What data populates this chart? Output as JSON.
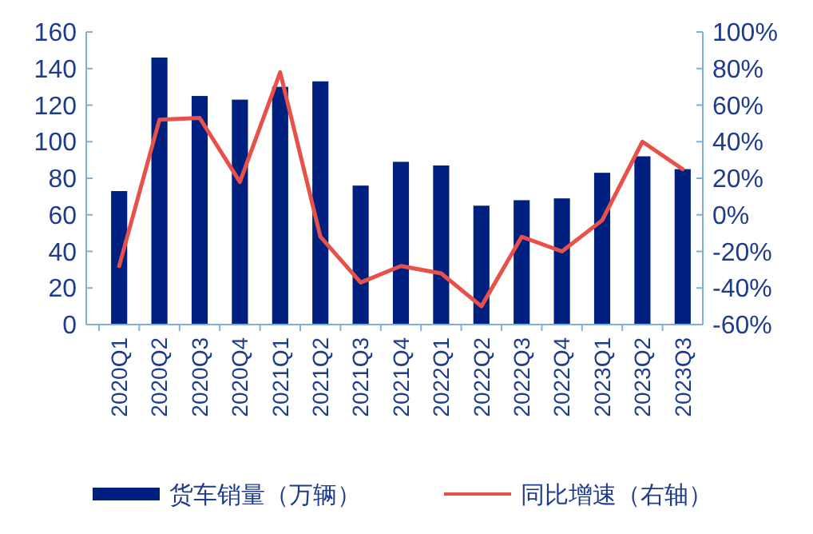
{
  "chart_data": {
    "type": "bar",
    "categories": [
      "2020Q1",
      "2020Q2",
      "2020Q3",
      "2020Q4",
      "2021Q1",
      "2021Q2",
      "2021Q3",
      "2021Q4",
      "2022Q1",
      "2022Q2",
      "2022Q3",
      "2022Q4",
      "2023Q1",
      "2023Q2",
      "2023Q3"
    ],
    "series": [
      {
        "name": "货车销量（万辆）",
        "color": "#002080",
        "values": [
          73,
          146,
          125,
          123,
          130,
          133,
          76,
          89,
          87,
          65,
          68,
          69,
          83,
          92,
          85
        ]
      },
      {
        "name": "同比增速（右轴）",
        "color": "#e8504a",
        "type": "line",
        "axis": "y2",
        "values": [
          -28,
          52,
          53,
          18,
          78,
          -12,
          -37,
          -28,
          -32,
          -50,
          -12,
          -20,
          -3,
          40,
          25
        ]
      }
    ],
    "ylim": [
      0,
      160
    ],
    "yticks": [
      0,
      20,
      40,
      60,
      80,
      100,
      120,
      140,
      160
    ],
    "y2lim": [
      -60,
      100
    ],
    "y2ticks": [
      {
        "value": -60,
        "label": "-60%"
      },
      {
        "value": -40,
        "label": "-40%"
      },
      {
        "value": -20,
        "label": "-20%"
      },
      {
        "value": 0,
        "label": "0%"
      },
      {
        "value": 20,
        "label": "20%"
      },
      {
        "value": 40,
        "label": "40%"
      },
      {
        "value": 60,
        "label": "60%"
      },
      {
        "value": 80,
        "label": "80%"
      },
      {
        "value": 100,
        "label": "100%"
      }
    ],
    "legend": "bottom",
    "grid": false
  }
}
